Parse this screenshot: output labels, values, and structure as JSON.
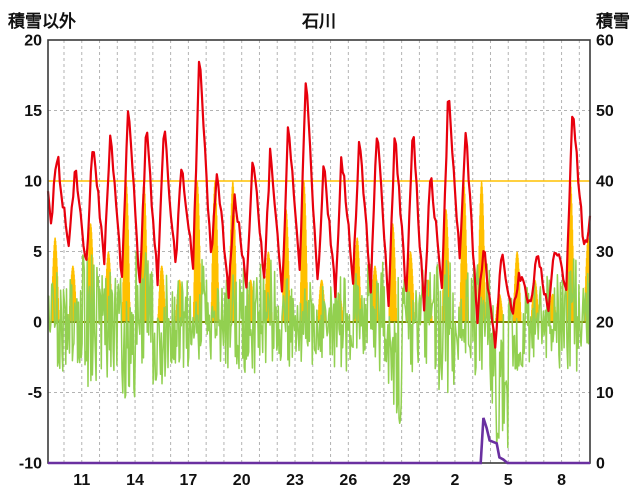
{
  "header": {
    "left_axis_title": "積雪以外",
    "chart_title": "石川",
    "right_axis_title": "積雪"
  },
  "chart_data": {
    "type": "line",
    "title": "石川",
    "left_axis": {
      "label": "積雪以外",
      "min": -10,
      "max": 20,
      "ticks": [
        20,
        15,
        10,
        5,
        0,
        -5,
        -10
      ]
    },
    "right_axis": {
      "label": "積雪",
      "min": 0,
      "max": 60,
      "ticks": [
        60,
        50,
        40,
        30,
        20,
        10,
        0
      ]
    },
    "x_axis": {
      "days_shown": 31,
      "xmin": 0.1,
      "xmax": 30.6,
      "tick_positions": [
        2,
        5,
        8,
        11,
        14,
        17,
        20,
        23,
        26,
        29
      ],
      "tick_labels": [
        "11",
        "14",
        "17",
        "20",
        "23",
        "26",
        "29",
        "2",
        "5",
        "8"
      ],
      "grid_every_day": true
    },
    "grid": {
      "dash_color": "#b3b3b3",
      "zero_line_color": "#808000",
      "ten_line_color": "#ffc000",
      "border_color": "#3a3a3a",
      "text_color": "#111111"
    },
    "series": {
      "red_line": {
        "style": "line",
        "axis": "left",
        "color": "#e8000d",
        "daily_max": [
          12,
          11,
          13,
          13.5,
          15.5,
          14,
          14,
          11,
          19,
          10.5,
          9,
          12,
          12.5,
          14,
          17.5,
          11.5,
          12,
          13,
          14,
          13.5,
          14,
          11,
          16.5,
          13.5,
          5.5,
          5,
          3.5,
          5,
          5.5,
          15.5,
          7.5
        ],
        "daily_min": [
          7,
          5,
          4,
          4.5,
          3,
          2.5,
          3,
          4,
          4,
          4.5,
          2,
          2.5,
          3,
          2,
          4,
          2.5,
          2,
          3,
          2.5,
          1.5,
          2,
          0.5,
          2,
          4.5,
          0,
          -2,
          0.5,
          1,
          0.5,
          2.5,
          5
        ]
      },
      "orange_bars": {
        "style": "bar",
        "axis": "left",
        "color": "#ffc000",
        "clip_max": 10,
        "daily_peak": [
          6,
          4,
          7,
          5,
          10,
          10,
          4,
          3,
          10,
          10,
          10,
          3,
          5,
          8,
          10,
          3,
          2,
          6,
          4,
          7,
          5,
          3,
          8,
          10,
          10,
          2,
          5,
          3,
          2,
          10,
          6
        ]
      },
      "green_line": {
        "style": "line",
        "axis": "left",
        "color": "#92d050",
        "daily_max": [
          4.5,
          3,
          5,
          4,
          4.5,
          5,
          3.5,
          3,
          4.5,
          3,
          3.5,
          4,
          4.5,
          3.5,
          4,
          3,
          3.5,
          4,
          4.5,
          3.5,
          3,
          4,
          4.5,
          3.5,
          4.5,
          3,
          2.5,
          3,
          3.5,
          4.5,
          3.5
        ],
        "daily_min": [
          -3.5,
          -4.5,
          -5,
          -4,
          -5.5,
          -3,
          -4.5,
          -3.5,
          -4,
          -3,
          -3.5,
          -4.5,
          -3,
          -3.5,
          -4,
          -3,
          -3.5,
          -3,
          -4.5,
          -7.5,
          -4,
          -3.5,
          -5.5,
          -3,
          -4,
          -9,
          -3.5,
          -3,
          -3.5,
          -4,
          -4.5
        ]
      },
      "purple_line": {
        "style": "line",
        "axis": "right",
        "color": "#6a30a0",
        "points_day_value": [
          [
            0.1,
            0
          ],
          [
            24.45,
            0
          ],
          [
            24.6,
            6.4
          ],
          [
            24.78,
            5.0
          ],
          [
            24.95,
            3.2
          ],
          [
            25.15,
            3.0
          ],
          [
            25.35,
            2.8
          ],
          [
            25.5,
            0.8
          ],
          [
            25.72,
            0.5
          ],
          [
            25.95,
            0
          ],
          [
            30.6,
            0
          ]
        ]
      }
    }
  }
}
